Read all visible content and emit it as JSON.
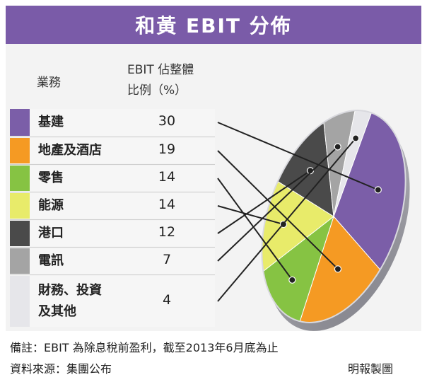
{
  "title": "和黃 EBIT 分佈",
  "table": {
    "col1_header": "業務",
    "col2_header_line1": "EBIT 佔整體",
    "col2_header_line2": "比例（%）"
  },
  "chart_data": {
    "type": "pie",
    "title": "和黃 EBIT 分佈",
    "unit": "%",
    "categories": [
      "基建",
      "地產及酒店",
      "零售",
      "能源",
      "港口",
      "電訊",
      "財務、投資及其他"
    ],
    "category_lines": [
      [
        "基建"
      ],
      [
        "地產及酒店"
      ],
      [
        "零售"
      ],
      [
        "能源"
      ],
      [
        "港口"
      ],
      [
        "電訊"
      ],
      [
        "財務、投資",
        "及其他"
      ]
    ],
    "values": [
      30,
      19,
      14,
      14,
      12,
      7,
      4
    ],
    "colors": [
      "#7b5ea8",
      "#f59a23",
      "#86c343",
      "#e8eb6a",
      "#4a4a4a",
      "#a4a4a4",
      "#e6e6ea"
    ]
  },
  "footer": {
    "note": "備註：EBIT 為除息稅前盈利，截至2013年6月底為止",
    "source": "資料來源：集團公布",
    "credit": "明報製圖"
  }
}
